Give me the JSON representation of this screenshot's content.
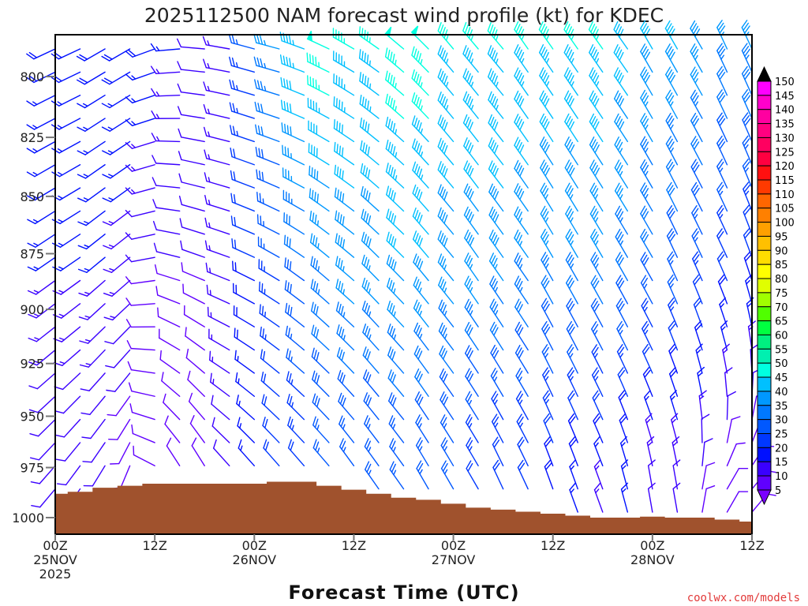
{
  "chart_data": {
    "type": "wind-barb-profile",
    "title": "2025112500 NAM forecast wind profile (kt) for KDEC",
    "xlabel": "Forecast Time (UTC)",
    "ylabel": "",
    "credit": "coolwx.com/models",
    "x_ticks": [
      {
        "hour": 0,
        "lines": [
          "00Z",
          "25NOV",
          "2025"
        ]
      },
      {
        "hour": 12,
        "lines": [
          "12Z"
        ]
      },
      {
        "hour": 24,
        "lines": [
          "00Z",
          "26NOV"
        ]
      },
      {
        "hour": 36,
        "lines": [
          "12Z"
        ]
      },
      {
        "hour": 48,
        "lines": [
          "00Z",
          "27NOV"
        ]
      },
      {
        "hour": 60,
        "lines": [
          "12Z"
        ]
      },
      {
        "hour": 72,
        "lines": [
          "00Z",
          "28NOV"
        ]
      },
      {
        "hour": 84,
        "lines": [
          "12Z"
        ]
      }
    ],
    "xlim_hours": [
      0,
      84
    ],
    "y_ticks": [
      800,
      825,
      850,
      875,
      900,
      925,
      950,
      975,
      1000
    ],
    "ylim_hpa": [
      783,
      1008
    ],
    "y_scale": "log-pressure (inverted)",
    "colorbar": {
      "label_values": [
        150,
        145,
        140,
        135,
        130,
        125,
        120,
        115,
        110,
        105,
        100,
        95,
        90,
        85,
        80,
        75,
        70,
        65,
        60,
        55,
        50,
        45,
        40,
        35,
        30,
        25,
        20,
        15,
        10,
        5
      ],
      "colors": [
        "#ff00ff",
        "#ff00cc",
        "#ff00a0",
        "#ff0080",
        "#ff0060",
        "#ff0040",
        "#ff1010",
        "#ff3a00",
        "#ff6600",
        "#ff8000",
        "#ffa000",
        "#ffc000",
        "#ffdd00",
        "#ffff00",
        "#e0ff00",
        "#a0ff00",
        "#50ff00",
        "#00ff40",
        "#00f080",
        "#00f0b0",
        "#00ffe0",
        "#00c0ff",
        "#0098ff",
        "#0078ff",
        "#0058ff",
        "#0038ff",
        "#0010ff",
        "#3a00ff",
        "#6000ff"
      ],
      "over_color": "#000000",
      "under_color": "#7a00ff"
    },
    "surface_color": "#a0522d",
    "surface_pressure_hpa": {
      "hours": [
        0,
        3,
        6,
        9,
        12,
        15,
        18,
        21,
        24,
        27,
        30,
        33,
        36,
        39,
        42,
        45,
        48,
        51,
        54,
        57,
        60,
        63,
        66,
        69,
        72,
        75,
        78,
        81,
        84
      ],
      "values": [
        988,
        987,
        985,
        984,
        983,
        983,
        983,
        983,
        983,
        982,
        982,
        984,
        986,
        988,
        990,
        991,
        993,
        995,
        996,
        997,
        998,
        999,
        1000,
        1000,
        999.5,
        1000,
        1000,
        1001,
        1002
      ]
    },
    "wind_anchor_levels_hpa": [
      790,
      880,
      980
    ],
    "wind_columns": [
      {
        "hour": 0,
        "dir": [
          245,
          235,
          220
        ],
        "kt": [
          18,
          15,
          10
        ]
      },
      {
        "hour": 3,
        "dir": [
          245,
          235,
          215
        ],
        "kt": [
          18,
          15,
          10
        ]
      },
      {
        "hour": 6,
        "dir": [
          240,
          230,
          210
        ],
        "kt": [
          18,
          15,
          10
        ]
      },
      {
        "hour": 9,
        "dir": [
          240,
          230,
          200
        ],
        "kt": [
          18,
          14,
          8
        ]
      },
      {
        "hour": 12,
        "dir": [
          250,
          260,
          300
        ],
        "kt": [
          18,
          10,
          8
        ]
      },
      {
        "hour": 15,
        "dir": [
          265,
          285,
          330
        ],
        "kt": [
          15,
          10,
          8
        ]
      },
      {
        "hour": 18,
        "dir": [
          275,
          290,
          330
        ],
        "kt": [
          12,
          10,
          10
        ]
      },
      {
        "hour": 21,
        "dir": [
          280,
          290,
          320
        ],
        "kt": [
          15,
          15,
          12
        ]
      },
      {
        "hour": 24,
        "dir": [
          285,
          295,
          320
        ],
        "kt": [
          25,
          20,
          15
        ]
      },
      {
        "hour": 27,
        "dir": [
          285,
          300,
          320
        ],
        "kt": [
          35,
          25,
          20
        ]
      },
      {
        "hour": 30,
        "dir": [
          290,
          305,
          320
        ],
        "kt": [
          45,
          30,
          22
        ]
      },
      {
        "hour": 33,
        "dir": [
          295,
          310,
          320
        ],
        "kt": [
          48,
          35,
          25
        ]
      },
      {
        "hour": 36,
        "dir": [
          300,
          310,
          325
        ],
        "kt": [
          45,
          38,
          25
        ]
      },
      {
        "hour": 39,
        "dir": [
          305,
          315,
          325
        ],
        "kt": [
          45,
          38,
          25
        ]
      },
      {
        "hour": 42,
        "dir": [
          310,
          315,
          325
        ],
        "kt": [
          48,
          40,
          25
        ]
      },
      {
        "hour": 45,
        "dir": [
          315,
          320,
          330
        ],
        "kt": [
          48,
          40,
          25
        ]
      },
      {
        "hour": 48,
        "dir": [
          320,
          320,
          330
        ],
        "kt": [
          45,
          38,
          25
        ]
      },
      {
        "hour": 51,
        "dir": [
          320,
          325,
          330
        ],
        "kt": [
          45,
          38,
          22
        ]
      },
      {
        "hour": 54,
        "dir": [
          320,
          325,
          335
        ],
        "kt": [
          45,
          38,
          20
        ]
      },
      {
        "hour": 57,
        "dir": [
          325,
          325,
          335
        ],
        "kt": [
          45,
          36,
          20
        ]
      },
      {
        "hour": 60,
        "dir": [
          325,
          330,
          340
        ],
        "kt": [
          45,
          35,
          18
        ]
      },
      {
        "hour": 63,
        "dir": [
          325,
          330,
          340
        ],
        "kt": [
          45,
          35,
          17
        ]
      },
      {
        "hour": 66,
        "dir": [
          325,
          330,
          340
        ],
        "kt": [
          45,
          35,
          15
        ]
      },
      {
        "hour": 69,
        "dir": [
          325,
          330,
          345
        ],
        "kt": [
          42,
          33,
          15
        ]
      },
      {
        "hour": 72,
        "dir": [
          330,
          330,
          350
        ],
        "kt": [
          40,
          30,
          12
        ]
      },
      {
        "hour": 75,
        "dir": [
          330,
          335,
          350
        ],
        "kt": [
          40,
          28,
          12
        ]
      },
      {
        "hour": 78,
        "dir": [
          330,
          335,
          10
        ],
        "kt": [
          38,
          25,
          10
        ]
      },
      {
        "hour": 81,
        "dir": [
          335,
          335,
          30
        ],
        "kt": [
          35,
          22,
          8
        ]
      },
      {
        "hour": 84,
        "dir": [
          335,
          340,
          40
        ],
        "kt": [
          35,
          20,
          8
        ]
      }
    ]
  }
}
